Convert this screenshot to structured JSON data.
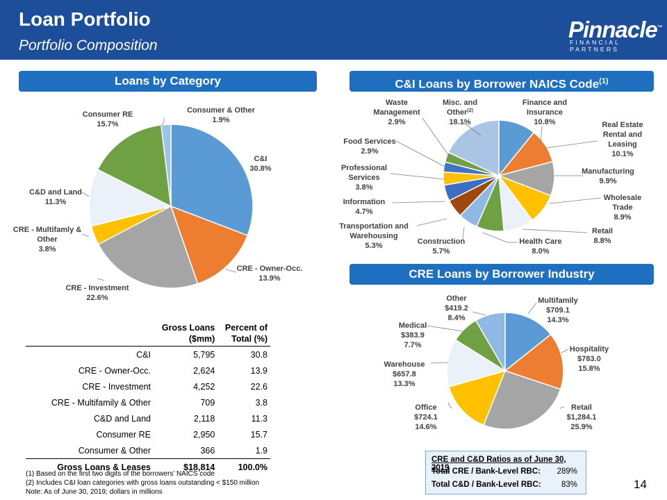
{
  "header": {
    "title": "Loan Portfolio",
    "subtitle": "Portfolio Composition",
    "logo_main": "Pinnacle",
    "logo_tm": "™",
    "logo_sub": "FINANCIAL PARTNERS"
  },
  "banners": {
    "loans_by_category": "Loans by Category",
    "ci_by_naics": "C&I Loans by Borrower NAICS Code",
    "ci_by_naics_sup": "(1)",
    "cre_by_industry": "CRE Loans by Borrower Industry"
  },
  "colors": {
    "header_bg": "#1c4e9a",
    "banner_bg": "#1f6fc0"
  },
  "chart_data": [
    {
      "type": "pie",
      "title": "Loans by Category",
      "slices": [
        {
          "label": "C&I",
          "value_text": "30.8%",
          "value": 30.8,
          "color": "#5b9bd5"
        },
        {
          "label": "CRE - Owner-Occ.",
          "value_text": "13.9%",
          "value": 13.9,
          "color": "#ed7d31"
        },
        {
          "label": "CRE - Investment",
          "value_text": "22.6%",
          "value": 22.6,
          "color": "#a5a5a5"
        },
        {
          "label": "CRE - Multifamly & Other",
          "value_text": "3.8%",
          "value": 3.8,
          "color": "#ffc000"
        },
        {
          "label": "C&D and Land",
          "value_text": "11.3%",
          "value": 11.3,
          "color": "#ebf1f8"
        },
        {
          "label": "Consumer RE",
          "value_text": "15.7%",
          "value": 15.7,
          "color": "#70a044"
        },
        {
          "label": "Consumer & Other",
          "value_text": "1.9%",
          "value": 1.9,
          "color": "#9dc3e6"
        }
      ]
    },
    {
      "type": "pie",
      "title": "C&I Loans by Borrower NAICS Code",
      "slices": [
        {
          "label": "Finance and Insurance",
          "value_text": "10.8%",
          "value": 10.8,
          "color": "#5b9bd5"
        },
        {
          "label": "Real Estate Rental and Leasing",
          "value_text": "10.1%",
          "value": 10.1,
          "color": "#ed7d31"
        },
        {
          "label": "Manufacturing",
          "value_text": "9.9%",
          "value": 9.9,
          "color": "#a5a5a5"
        },
        {
          "label": "Wholesale Trade",
          "value_text": "8.9%",
          "value": 8.9,
          "color": "#ffc000"
        },
        {
          "label": "Retail",
          "value_text": "8.8%",
          "value": 8.8,
          "color": "#ebf1f8"
        },
        {
          "label": "Health Care",
          "value_text": "8.0%",
          "value": 8.0,
          "color": "#70a044"
        },
        {
          "label": "Construction",
          "value_text": "5.7%",
          "value": 5.7,
          "color": "#8fb8e4"
        },
        {
          "label": "Transportation and Warehousing",
          "value_text": "5.3%",
          "value": 5.3,
          "color": "#9e480e"
        },
        {
          "label": "Information",
          "value_text": "4.7%",
          "value": 4.7,
          "color": "#3a6fc4"
        },
        {
          "label": "Professional Services",
          "value_text": "3.8%",
          "value": 3.8,
          "color": "#ffc000"
        },
        {
          "label": "Food Services",
          "value_text": "2.9%",
          "value": 2.9,
          "color": "#4472c4"
        },
        {
          "label": "Waste Management",
          "value_text": "2.9%",
          "value": 2.9,
          "color": "#70a044"
        },
        {
          "label": "Misc. and Other",
          "label_sup": "(2)",
          "value_text": "18.1%",
          "value": 18.1,
          "color": "#aac4e6"
        }
      ]
    },
    {
      "type": "pie",
      "title": "CRE Loans by Borrower Industry",
      "slices": [
        {
          "label": "Multifamily",
          "amount": "$709.1",
          "value_text": "14.3%",
          "value": 14.3,
          "color": "#5b9bd5"
        },
        {
          "label": "Hospitality",
          "amount": "$783.0",
          "value_text": "15.8%",
          "value": 15.8,
          "color": "#ed7d31"
        },
        {
          "label": "Retail",
          "amount": "$1,284.1",
          "value_text": "25.9%",
          "value": 25.9,
          "color": "#a5a5a5"
        },
        {
          "label": "Office",
          "amount": "$724.1",
          "value_text": "14.6%",
          "value": 14.6,
          "color": "#ffc000"
        },
        {
          "label": "Warehouse",
          "amount": "$657.8",
          "value_text": "13.3%",
          "value": 13.3,
          "color": "#ebf1f8"
        },
        {
          "label": "Medical",
          "amount": "$383.9",
          "value_text": "7.7%",
          "value": 7.7,
          "color": "#70a044"
        },
        {
          "label": "Other",
          "amount": "$419.2",
          "value_text": "8.4%",
          "value": 8.4,
          "color": "#8fb8e4"
        }
      ]
    },
    {
      "type": "table",
      "columns": [
        "",
        "Gross Loans ($mm)",
        "Percent of Total (%)"
      ],
      "rows": [
        [
          "C&I",
          "5,795",
          "30.8"
        ],
        [
          "CRE - Owner-Occ.",
          "2,624",
          "13.9"
        ],
        [
          "CRE - Investment",
          "4,252",
          "22.6"
        ],
        [
          "CRE - Multifamily & Other",
          "709",
          "3.8"
        ],
        [
          "C&D and Land",
          "2,118",
          "11.3"
        ],
        [
          "Consumer RE",
          "2,950",
          "15.7"
        ],
        [
          "Consumer & Other",
          "366",
          "1.9"
        ]
      ],
      "total": [
        "Gross Loans & Leases",
        "$18,814",
        "100.0%"
      ]
    }
  ],
  "table_header": {
    "col2_line1": "Gross Loans",
    "col2_line2": "($mm)",
    "col3_line1": "Percent of",
    "col3_line2": "Total (%)"
  },
  "ratios": {
    "title": "CRE and C&D Ratios as of June 30, 2019",
    "rows": [
      {
        "label": "Total CRE / Bank-Level RBC:",
        "value": "289%"
      },
      {
        "label": "Total C&D / Bank-Level RBC:",
        "value": "83%"
      }
    ]
  },
  "footnotes": [
    "(1)  Based on the first two digits of the borrowers’ NAICS code",
    "(2)  Includes C&I loan categories with gross loans outstanding < $150 million",
    "Note:  As of June 30, 2019; dollars in millions"
  ],
  "page_number": "14"
}
